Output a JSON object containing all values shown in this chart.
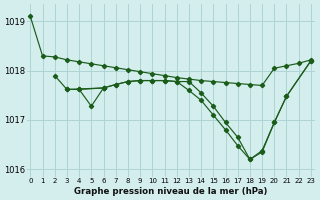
{
  "title": "Graphe pression niveau de la mer (hPa)",
  "background_color": "#d4eeee",
  "grid_color": "#aed4d4",
  "line_color": "#1a5c1a",
  "xlim": [
    -0.3,
    23.3
  ],
  "ylim": [
    1015.85,
    1019.35
  ],
  "yticks": [
    1016,
    1017,
    1018,
    1019
  ],
  "xtick_labels": [
    "0",
    "1",
    "2",
    "3",
    "4",
    "5",
    "6",
    "7",
    "8",
    "9",
    "10",
    "11",
    "12",
    "13",
    "14",
    "15",
    "16",
    "17",
    "18",
    "19",
    "20",
    "21",
    "22",
    "23"
  ],
  "lineA": [
    1019.1,
    1018.3,
    1018.28,
    1018.22,
    1018.18,
    1018.14,
    1018.1,
    1018.06,
    1018.02,
    1017.98,
    1017.94,
    1017.9,
    1017.86,
    1017.83,
    1017.8,
    1017.78,
    1017.76,
    1017.74,
    1017.72,
    1017.7,
    1018.05,
    1018.1,
    1018.15,
    1018.22
  ],
  "lineA_x": [
    0,
    1,
    2,
    3,
    4,
    5,
    6,
    7,
    8,
    9,
    10,
    11,
    12,
    13,
    14,
    15,
    16,
    17,
    18,
    19,
    20,
    21,
    22,
    23
  ],
  "lineB": [
    1017.9,
    1017.62,
    1017.62,
    1017.28,
    1017.65
  ],
  "lineB_x": [
    2,
    3,
    4,
    5,
    6
  ],
  "lineC": [
    1017.62,
    1017.65,
    1017.72,
    1017.78,
    1017.8,
    1017.8,
    1017.8,
    1017.78,
    1017.78,
    1017.55,
    1017.28,
    1016.95,
    1016.65,
    1016.2,
    1016.35,
    1016.95,
    1017.48,
    1018.2
  ],
  "lineC_x": [
    3,
    6,
    7,
    8,
    9,
    10,
    11,
    12,
    13,
    14,
    15,
    16,
    17,
    18,
    19,
    20,
    21,
    23
  ],
  "lineD": [
    1017.62,
    1017.65,
    1017.72,
    1017.78,
    1017.8,
    1017.8,
    1017.8,
    1017.78,
    1017.6,
    1017.4,
    1017.1,
    1016.8,
    1016.48,
    1016.2,
    1016.38,
    1016.95,
    1017.48,
    1018.2
  ],
  "lineD_x": [
    4,
    6,
    7,
    8,
    9,
    10,
    11,
    12,
    13,
    14,
    15,
    16,
    17,
    18,
    19,
    20,
    21,
    23
  ]
}
